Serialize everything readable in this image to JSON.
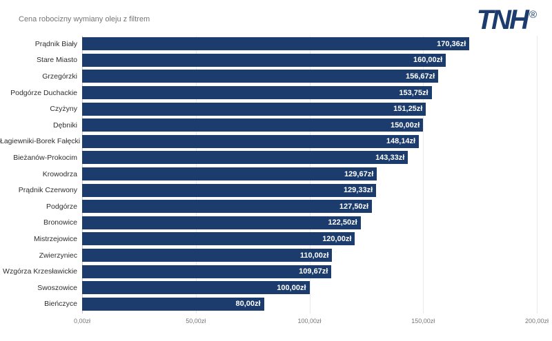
{
  "header": {
    "title": "Cena robocizny wymiany oleju z filtrem",
    "logo_text": "TNH",
    "logo_registered": "®"
  },
  "colors": {
    "bar": "#1b3c6d",
    "logo": "#1b3c6d",
    "title_text": "#757575",
    "axis_label": "#757575",
    "category_label": "#2e2e2e",
    "gridline": "#e9e9e9",
    "axis_line": "#c9c9c9",
    "value_label": "#ffffff"
  },
  "chart_data": {
    "type": "bar",
    "orientation": "horizontal",
    "title": "Cena robocizny wymiany oleju z filtrem",
    "categories": [
      "Prądnik Biały",
      "Stare Miasto",
      "Grzegórzki",
      "Podgórze Duchackie",
      "Czyżyny",
      "Dębniki",
      "Łagiewniki-Borek Fałęcki",
      "Bieżanów-Prokocim",
      "Krowodrza",
      "Prądnik Czerwony",
      "Podgórze",
      "Bronowice",
      "Mistrzejowice",
      "Zwierzyniec",
      "Wzgórza Krzesławickie",
      "Swoszowice",
      "Bieńczyce"
    ],
    "values": [
      170.36,
      160.0,
      156.67,
      153.75,
      151.25,
      150.0,
      148.14,
      143.33,
      129.67,
      129.33,
      127.5,
      122.5,
      120.0,
      110.0,
      109.67,
      100.0,
      80.0
    ],
    "value_labels": [
      "170,36zł",
      "160,00zł",
      "156,67zł",
      "153,75zł",
      "151,25zł",
      "150,00zł",
      "148,14zł",
      "143,33zł",
      "129,67zł",
      "129,33zł",
      "127,50zł",
      "122,50zł",
      "120,00zł",
      "110,00zł",
      "109,67zł",
      "100,00zł",
      "80,00zł"
    ],
    "xlabel": "",
    "ylabel": "",
    "xlim": [
      0,
      200
    ],
    "x_ticks": [
      0,
      50,
      100,
      150,
      200
    ],
    "x_tick_labels": [
      "0,00zł",
      "50,00zł",
      "100,00zł",
      "150,00zł",
      "200,00zł"
    ],
    "grid": true,
    "legend": false,
    "value_labels_position": "inside-end"
  }
}
